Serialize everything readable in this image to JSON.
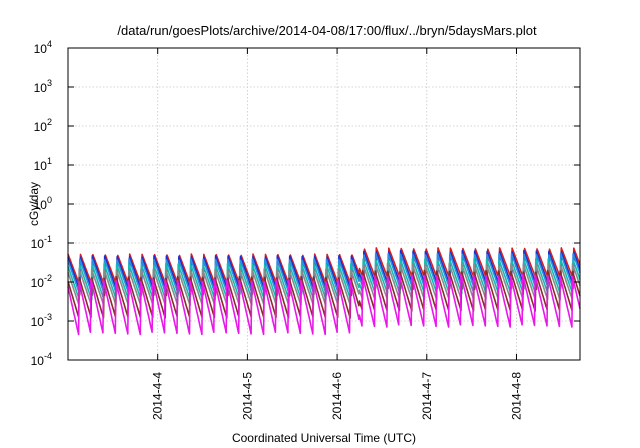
{
  "chart_data": {
    "type": "line",
    "title": "/data/run/goesPlots/archive/2014-04-08/17:00/flux/../bryn/5daysMars.plot",
    "xlabel": "Coordinated Universal Time (UTC)",
    "ylabel": "cGy/day",
    "yscale": "log",
    "ylim": [
      0.0001,
      10000
    ],
    "xlim": [
      "2014-04-03T00:00",
      "2014-04-08T17:00"
    ],
    "grid": true,
    "y_ticks": [
      {
        "base": "10",
        "exp": "4",
        "value": 10000
      },
      {
        "base": "10",
        "exp": "3",
        "value": 1000
      },
      {
        "base": "10",
        "exp": "2",
        "value": 100
      },
      {
        "base": "10",
        "exp": "1",
        "value": 10
      },
      {
        "base": "10",
        "exp": "0",
        "value": 1
      },
      {
        "base": "10",
        "exp": "-1",
        "value": 0.1
      },
      {
        "base": "10",
        "exp": "-2",
        "value": 0.01
      },
      {
        "base": "10",
        "exp": "-3",
        "value": 0.001
      },
      {
        "base": "10",
        "exp": "-4",
        "value": 0.0001
      }
    ],
    "x_ticks": [
      {
        "label": "2014-4-4",
        "value": "2014-04-04T00:00"
      },
      {
        "label": "2014-4-5",
        "value": "2014-04-05T00:00"
      },
      {
        "label": "2014-4-6",
        "value": "2014-04-06T00:00"
      },
      {
        "label": "2014-4-7",
        "value": "2014-04-07T00:00"
      },
      {
        "label": "2014-4-8",
        "value": "2014-04-08T00:00"
      }
    ],
    "sawtooth_period_hours": 3.3,
    "series": [
      {
        "color": "#d62020",
        "peak_early": 0.052,
        "trough_early": 0.0075,
        "peak_late": 0.075,
        "trough_late": 0.011
      },
      {
        "color": "#c81e78",
        "peak_early": 0.042,
        "trough_early": 0.0045,
        "peak_late": 0.06,
        "trough_late": 0.0065
      },
      {
        "color": "#1c2fd0",
        "peak_early": 0.048,
        "trough_early": 0.006,
        "peak_late": 0.065,
        "trough_late": 0.0085
      },
      {
        "color": "#2b8fe0",
        "peak_early": 0.04,
        "trough_early": 0.005,
        "peak_late": 0.055,
        "trough_late": 0.007
      },
      {
        "color": "#12bcb0",
        "peak_early": 0.03,
        "trough_early": 0.0035,
        "peak_late": 0.04,
        "trough_late": 0.005
      },
      {
        "color": "#8a8a8a",
        "peak_early": 0.022,
        "trough_early": 0.0025,
        "peak_late": 0.03,
        "trough_late": 0.0035
      },
      {
        "color": "#8b2a2a",
        "peak_early": 0.014,
        "trough_early": 0.0012,
        "peak_late": 0.02,
        "trough_late": 0.0018
      },
      {
        "color": "#e818e8",
        "peak_early": 0.012,
        "trough_early": 0.00045,
        "peak_late": 0.016,
        "trough_late": 0.0007
      }
    ]
  }
}
